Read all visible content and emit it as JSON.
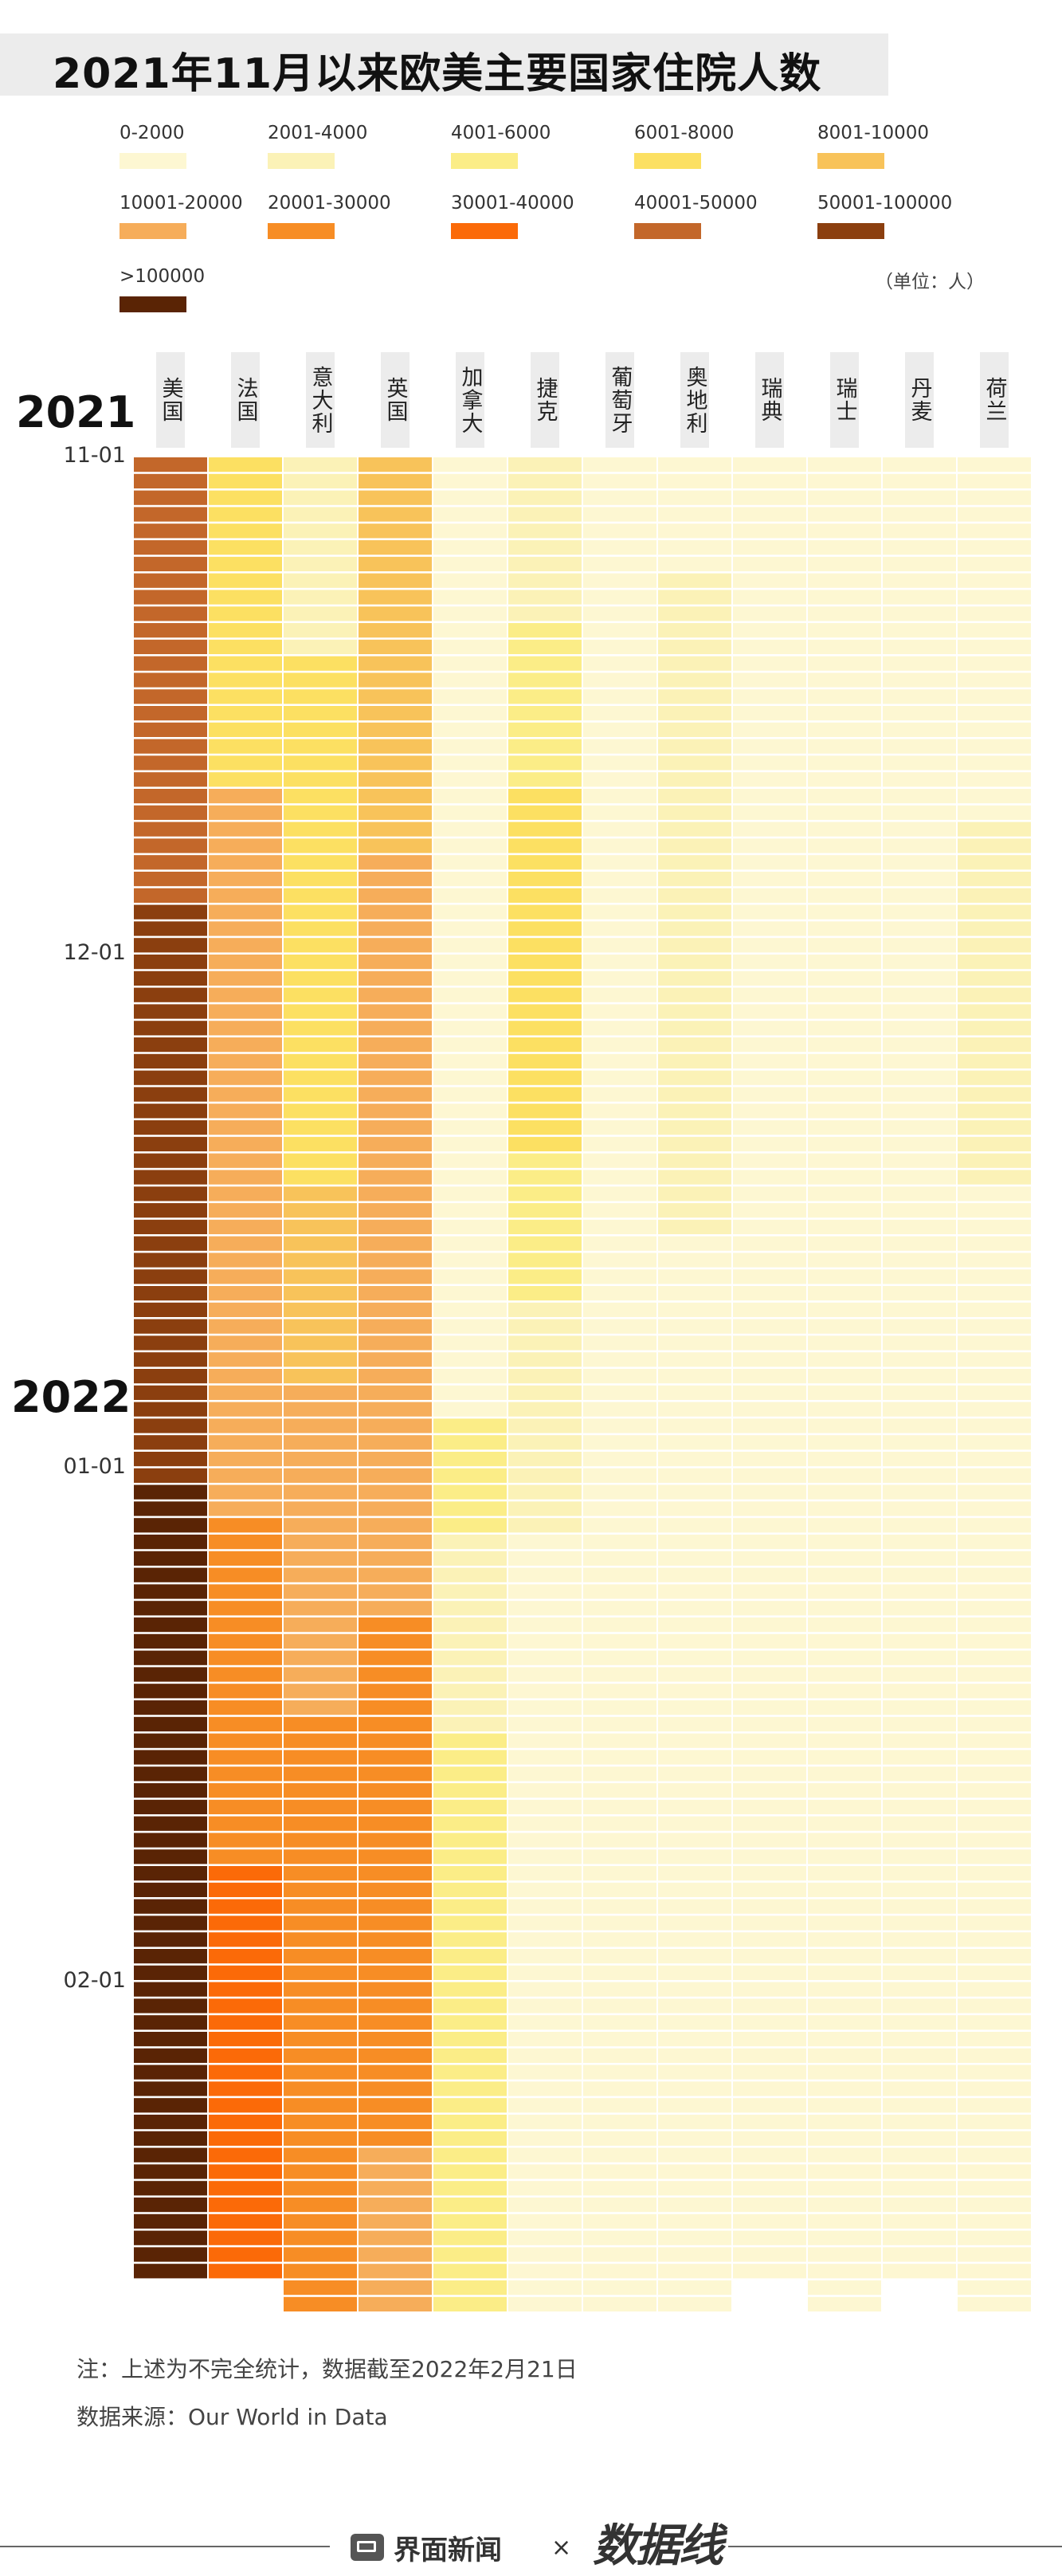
{
  "title": "2021年11月以来欧美主要国家住院人数",
  "unit_note": "（单位：人）",
  "legend": [
    {
      "label": "0-2000",
      "color": "#fdf7d2"
    },
    {
      "label": "2001-4000",
      "color": "#fbf2b7"
    },
    {
      "label": "4001-6000",
      "color": "#fbed87"
    },
    {
      "label": "6001-8000",
      "color": "#fce062"
    },
    {
      "label": "8001-10000",
      "color": "#f8c35a"
    },
    {
      "label": "10001-20000",
      "color": "#f6ad5a"
    },
    {
      "label": "20001-30000",
      "color": "#f78d25"
    },
    {
      "label": "30001-40000",
      "color": "#fb6a08"
    },
    {
      "label": "40001-50000",
      "color": "#c3672a"
    },
    {
      "label": "50001-100000",
      "color": "#8b3f0f"
    },
    {
      "label": ">100000",
      "color": "#5a2405"
    }
  ],
  "year_labels": [
    "2021",
    "2022"
  ],
  "date_labels": [
    "11-01",
    "12-01",
    "01-01",
    "02-01"
  ],
  "note": "注：上述为不完全统计，数据截至2022年2月21日",
  "source": "数据来源：Our World in Data",
  "footer_brand": "界面新闻",
  "footer_times": "×",
  "footer_mark_text": "数据线",
  "chart_data": {
    "type": "heatmap",
    "title": "2021年11月以来欧美主要国家住院人数",
    "unit": "人",
    "x": [
      "美国",
      "法国",
      "意大利",
      "英国",
      "加拿大",
      "捷克",
      "葡萄牙",
      "奥地利",
      "瑞典",
      "瑞士",
      "丹麦",
      "荷兰"
    ],
    "date_range": [
      "2021-11-01",
      "2022-02-21"
    ],
    "y_ticks": [
      "11-01",
      "12-01",
      "01-01",
      "02-01"
    ],
    "level_bins": [
      "0-2000",
      "2001-4000",
      "4001-6000",
      "6001-8000",
      "8001-10000",
      "10001-20000",
      "20001-30000",
      "30001-40000",
      "40001-50000",
      "50001-100000",
      ">100000"
    ],
    "series": [
      {
        "name": "美国",
        "segments": [
          [
            1,
            27,
            8
          ],
          [
            28,
            35,
            9
          ],
          [
            36,
            62,
            9
          ],
          [
            63,
            110,
            10
          ]
        ]
      },
      {
        "name": "法国",
        "segments": [
          [
            1,
            20,
            3
          ],
          [
            21,
            64,
            5
          ],
          [
            65,
            85,
            6
          ],
          [
            86,
            110,
            7
          ]
        ]
      },
      {
        "name": "意大利",
        "segments": [
          [
            1,
            12,
            1
          ],
          [
            13,
            44,
            3
          ],
          [
            45,
            56,
            4
          ],
          [
            57,
            76,
            5
          ],
          [
            77,
            112,
            6
          ]
        ]
      },
      {
        "name": "英国",
        "segments": [
          [
            1,
            24,
            4
          ],
          [
            25,
            70,
            5
          ],
          [
            71,
            102,
            6
          ],
          [
            103,
            112,
            5
          ]
        ]
      },
      {
        "name": "加拿大",
        "segments": [
          [
            1,
            58,
            0
          ],
          [
            59,
            65,
            2
          ],
          [
            66,
            77,
            1
          ],
          [
            78,
            100,
            2
          ],
          [
            101,
            112,
            2
          ]
        ]
      },
      {
        "name": "捷克",
        "segments": [
          [
            1,
            10,
            1
          ],
          [
            11,
            20,
            2
          ],
          [
            21,
            42,
            3
          ],
          [
            43,
            51,
            2
          ],
          [
            52,
            65,
            1
          ],
          [
            66,
            75,
            0
          ],
          [
            76,
            112,
            0
          ]
        ]
      },
      {
        "name": "葡萄牙",
        "segments": [
          [
            1,
            80,
            0
          ],
          [
            81,
            112,
            0
          ]
        ]
      },
      {
        "name": "奥地利",
        "segments": [
          [
            1,
            7,
            0
          ],
          [
            8,
            47,
            1
          ],
          [
            48,
            112,
            0
          ]
        ]
      },
      {
        "name": "瑞典",
        "segments": [
          [
            1,
            88,
            0
          ],
          [
            89,
            110,
            0
          ]
        ]
      },
      {
        "name": "瑞士",
        "segments": [
          [
            1,
            112,
            0
          ]
        ]
      },
      {
        "name": "丹麦",
        "segments": [
          [
            1,
            104,
            0
          ],
          [
            105,
            110,
            0
          ]
        ]
      },
      {
        "name": "荷兰",
        "segments": [
          [
            1,
            22,
            0
          ],
          [
            23,
            44,
            1
          ],
          [
            45,
            112,
            0
          ]
        ]
      }
    ]
  }
}
